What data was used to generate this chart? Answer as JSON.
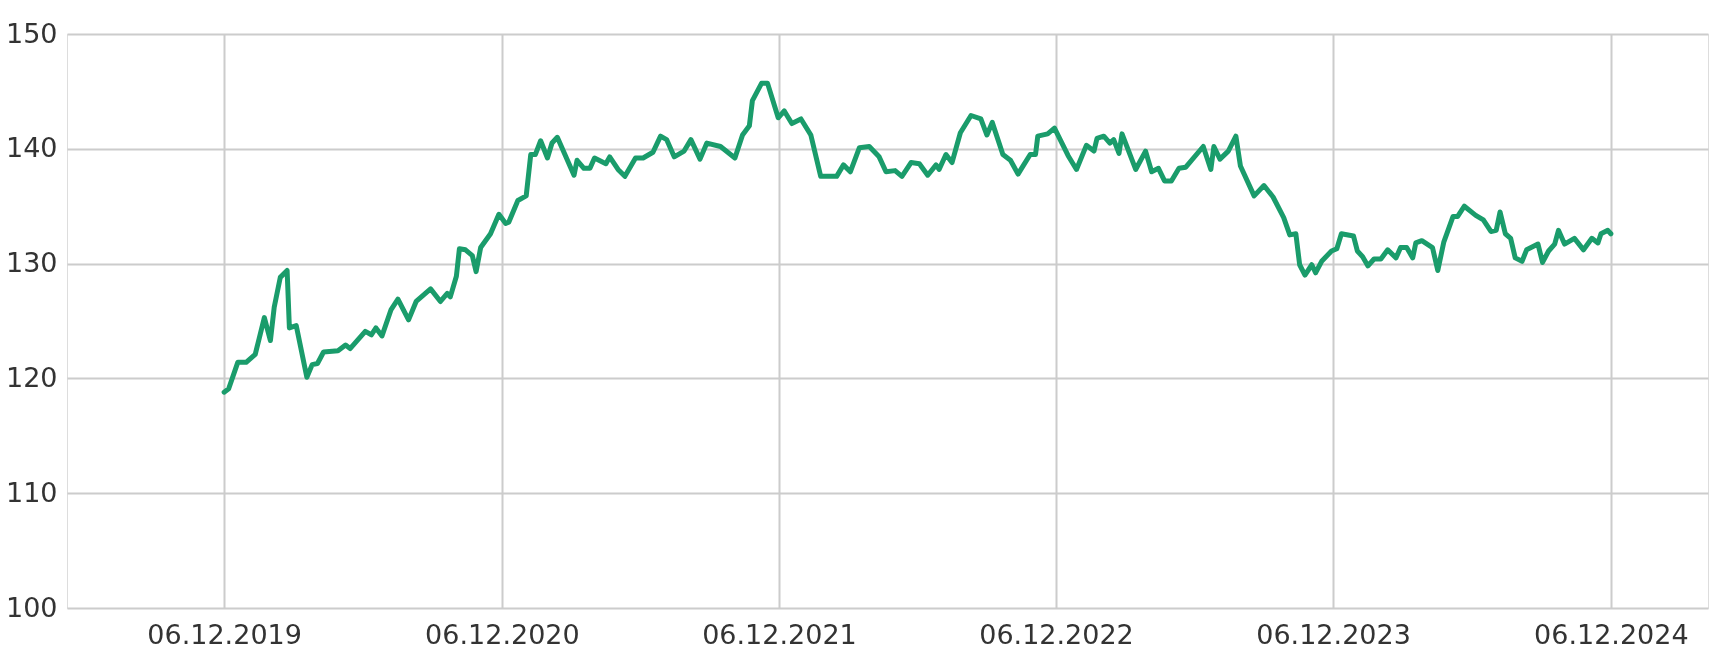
{
  "chart_data": {
    "type": "line",
    "x": [
      "2019-12-06",
      "2019-12-12",
      "2019-12-24",
      "2020-01-04",
      "2020-01-16",
      "2020-01-28",
      "2020-02-05",
      "2020-02-10",
      "2020-02-18",
      "2020-02-27",
      "2020-03-01",
      "2020-03-10",
      "2020-03-24",
      "2020-03-31",
      "2020-04-07",
      "2020-04-15",
      "2020-05-04",
      "2020-05-14",
      "2020-05-20",
      "2020-06-09",
      "2020-06-17",
      "2020-06-23",
      "2020-07-01",
      "2020-07-13",
      "2020-07-22",
      "2020-08-05",
      "2020-08-15",
      "2020-09-03",
      "2020-09-16",
      "2020-09-25",
      "2020-09-29",
      "2020-10-07",
      "2020-10-11",
      "2020-10-19",
      "2020-10-28",
      "2020-11-02",
      "2020-11-08",
      "2020-11-21",
      "2020-12-02",
      "2020-12-11",
      "2020-12-15",
      "2020-12-27",
      "2021-01-07",
      "2021-01-13",
      "2021-01-19",
      "2021-01-26",
      "2021-02-04",
      "2021-02-10",
      "2021-02-17",
      "2021-03-11",
      "2021-03-15",
      "2021-03-24",
      "2021-04-01",
      "2021-04-07",
      "2021-04-22",
      "2021-04-27",
      "2021-05-08",
      "2021-05-17",
      "2021-05-31",
      "2021-06-10",
      "2021-06-23",
      "2021-07-03",
      "2021-07-11",
      "2021-07-21",
      "2021-08-03",
      "2021-08-12",
      "2021-08-24",
      "2021-09-02",
      "2021-09-20",
      "2021-10-09",
      "2021-10-19",
      "2021-10-28",
      "2021-11-01",
      "2021-11-13",
      "2021-11-21",
      "2021-12-05",
      "2021-12-13",
      "2021-12-23",
      "2022-01-04",
      "2022-01-17",
      "2022-01-30",
      "2022-02-20",
      "2022-03-01",
      "2022-03-10",
      "2022-03-22",
      "2022-04-04",
      "2022-04-17",
      "2022-04-26",
      "2022-05-08",
      "2022-05-17",
      "2022-05-29",
      "2022-06-09",
      "2022-06-20",
      "2022-07-01",
      "2022-07-05",
      "2022-07-14",
      "2022-07-22",
      "2022-08-02",
      "2022-08-16",
      "2022-08-29",
      "2022-09-06",
      "2022-09-13",
      "2022-09-27",
      "2022-10-07",
      "2022-10-17",
      "2022-11-02",
      "2022-11-09",
      "2022-11-12",
      "2022-11-25",
      "2022-12-04",
      "2022-12-22",
      "2023-01-02",
      "2023-01-15",
      "2023-01-25",
      "2023-01-29",
      "2023-02-07",
      "2023-02-15",
      "2023-02-20",
      "2023-02-27",
      "2023-03-03",
      "2023-03-21",
      "2023-04-03",
      "2023-04-11",
      "2023-04-20",
      "2023-04-28",
      "2023-05-07",
      "2023-05-17",
      "2023-05-26",
      "2023-06-18",
      "2023-06-28",
      "2023-07-02",
      "2023-07-10",
      "2023-07-21",
      "2023-07-31",
      "2023-08-06",
      "2023-08-24",
      "2023-09-06",
      "2023-09-18",
      "2023-10-02",
      "2023-10-10",
      "2023-10-18",
      "2023-10-23",
      "2023-10-30",
      "2023-11-08",
      "2023-11-13",
      "2023-11-21",
      "2023-12-04",
      "2023-12-11",
      "2023-12-17",
      "2024-01-02",
      "2024-01-07",
      "2024-01-14",
      "2024-01-21",
      "2024-01-29",
      "2024-02-07",
      "2024-02-16",
      "2024-02-27",
      "2024-03-04",
      "2024-03-12",
      "2024-03-20",
      "2024-03-24",
      "2024-04-01",
      "2024-04-15",
      "2024-04-22",
      "2024-04-30",
      "2024-05-12",
      "2024-05-18",
      "2024-05-27",
      "2024-06-11",
      "2024-06-21",
      "2024-07-01",
      "2024-07-08",
      "2024-07-13",
      "2024-07-20",
      "2024-07-27",
      "2024-08-02",
      "2024-08-11",
      "2024-08-17",
      "2024-09-01",
      "2024-09-07",
      "2024-09-15",
      "2024-09-23",
      "2024-09-28",
      "2024-10-06",
      "2024-10-19",
      "2024-10-31",
      "2024-11-11",
      "2024-11-19",
      "2024-11-23",
      "2024-12-02",
      "2024-12-06"
    ],
    "series": [
      {
        "color": "#1a9c6b",
        "values": [
          118.8,
          119.1,
          121.4,
          121.4,
          122.1,
          125.3,
          123.3,
          126.2,
          128.8,
          129.4,
          124.4,
          124.6,
          120.1,
          121.2,
          121.3,
          122.3,
          122.4,
          122.9,
          122.6,
          124.1,
          123.8,
          124.4,
          123.7,
          126.0,
          126.9,
          125.1,
          126.7,
          127.8,
          126.7,
          127.4,
          127.1,
          128.9,
          131.3,
          131.2,
          130.7,
          129.3,
          131.4,
          132.6,
          134.3,
          133.5,
          133.6,
          135.5,
          135.9,
          139.5,
          139.5,
          140.7,
          139.2,
          140.5,
          141.0,
          137.7,
          139.0,
          138.3,
          138.3,
          139.2,
          138.7,
          139.3,
          138.2,
          137.6,
          139.2,
          139.2,
          139.7,
          141.1,
          140.8,
          139.3,
          139.8,
          140.8,
          139.1,
          140.5,
          140.2,
          139.2,
          141.2,
          142.0,
          144.2,
          145.7,
          145.7,
          142.7,
          143.3,
          142.2,
          142.6,
          141.2,
          137.6,
          137.6,
          138.6,
          138.0,
          140.1,
          140.2,
          139.3,
          138.0,
          138.1,
          137.6,
          138.8,
          138.7,
          137.7,
          138.6,
          138.2,
          139.5,
          138.8,
          141.4,
          142.9,
          142.6,
          141.2,
          142.3,
          139.5,
          139.0,
          137.8,
          139.5,
          139.5,
          141.1,
          141.3,
          141.8,
          139.4,
          138.2,
          140.3,
          139.8,
          140.9,
          141.1,
          140.5,
          140.8,
          139.6,
          141.3,
          138.2,
          139.8,
          138.0,
          138.3,
          137.2,
          137.2,
          138.3,
          138.4,
          140.2,
          138.2,
          140.2,
          139.1,
          139.8,
          141.1,
          138.5,
          135.9,
          136.8,
          135.8,
          134.0,
          132.5,
          132.6,
          129.9,
          129.0,
          129.9,
          129.2,
          130.2,
          131.1,
          131.3,
          132.6,
          132.4,
          131.1,
          130.6,
          129.8,
          130.4,
          130.4,
          131.2,
          130.5,
          131.4,
          131.4,
          130.5,
          131.8,
          132.0,
          131.4,
          129.4,
          131.9,
          134.1,
          134.1,
          135.0,
          134.2,
          133.8,
          132.8,
          132.9,
          134.5,
          132.6,
          132.2,
          130.5,
          130.2,
          131.2,
          131.7,
          130.1,
          131.1,
          131.7,
          132.9,
          131.7,
          132.2,
          131.2,
          132.2,
          131.8,
          132.6,
          132.9,
          132.6
        ]
      }
    ],
    "xlim": [
      "2019-05-13",
      "2025-04-13"
    ],
    "xticks": [
      {
        "value": "2019-12-06",
        "label": "06.12.2019"
      },
      {
        "value": "2020-12-06",
        "label": "06.12.2020"
      },
      {
        "value": "2021-12-06",
        "label": "06.12.2021"
      },
      {
        "value": "2022-12-06",
        "label": "06.12.2022"
      },
      {
        "value": "2023-12-06",
        "label": "06.12.2023"
      },
      {
        "value": "2024-12-06",
        "label": "06.12.2024"
      }
    ],
    "ylim": [
      100,
      150
    ],
    "yticks": [
      100,
      110,
      120,
      130,
      140,
      150
    ],
    "grid": true
  }
}
